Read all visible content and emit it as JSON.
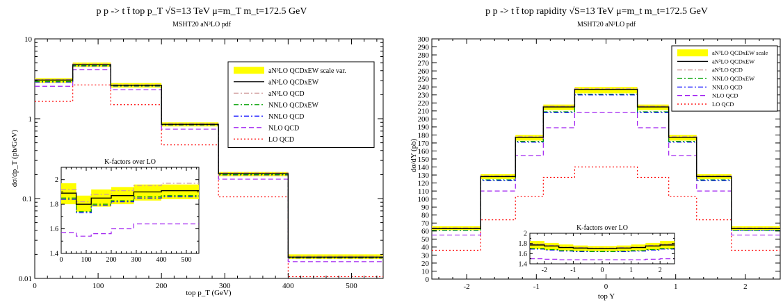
{
  "chart_data": [
    {
      "type": "line",
      "title": "p p -> t t̄    top p_T    √S=13 TeV    μ=m_T    m_t=172.5 GeV",
      "subtitle": "MSHT20 aN³LO pdf",
      "xlabel": "top p_T (GeV)",
      "ylabel": "dσ/dp_T (pb/GeV)",
      "xlim": [
        0,
        550
      ],
      "ylim": [
        0.01,
        10
      ],
      "ylog": true,
      "xticks": [
        0,
        100,
        200,
        300,
        400,
        500
      ],
      "yticks": [
        0.01,
        0.1,
        1,
        10
      ],
      "ytick_labels": [
        "0.01",
        "0.1",
        "1",
        "10"
      ],
      "legend_position": "top-right",
      "bin_edges": [
        0,
        60,
        120,
        200,
        290,
        400,
        550
      ],
      "band": {
        "name": "aN³LO QCDxEW scale var.",
        "color": "#ffff00",
        "lower": [
          2.82,
          4.45,
          2.45,
          0.8,
          0.19,
          0.0175
        ],
        "upper": [
          3.22,
          5.05,
          2.8,
          0.9,
          0.215,
          0.02
        ]
      },
      "series": [
        {
          "name": "aN³LO QCDxEW",
          "color": "#000000",
          "dash": "solid",
          "values": [
            3.05,
            4.75,
            2.62,
            0.85,
            0.205,
            0.0185
          ]
        },
        {
          "name": "aN³LO QCD",
          "color": "#d19c9c",
          "dash": "dashdot",
          "values": [
            3.1,
            4.85,
            2.67,
            0.87,
            0.21,
            0.019
          ]
        },
        {
          "name": "NNLO QCDxEW",
          "color": "#00a000",
          "dash": "dashdot",
          "values": [
            2.93,
            4.62,
            2.58,
            0.84,
            0.2,
            0.0182
          ]
        },
        {
          "name": "NNLO QCD",
          "color": "#0000ff",
          "dash": "dashdot",
          "values": [
            2.88,
            4.58,
            2.56,
            0.835,
            0.198,
            0.018
          ]
        },
        {
          "name": "NLO QCD",
          "color": "#a020f0",
          "dash": "dashed",
          "values": [
            2.55,
            4.1,
            2.3,
            0.74,
            0.175,
            0.0162
          ]
        },
        {
          "name": "LO QCD",
          "color": "#ff0000",
          "dash": "dotted",
          "values": [
            1.65,
            2.65,
            1.5,
            0.47,
            0.105,
            0.0105
          ]
        }
      ],
      "inset": {
        "title": "K-factors over LO",
        "xlim": [
          0,
          550
        ],
        "ylim": [
          1.4,
          2.1
        ],
        "xticks": [
          0,
          100,
          200,
          300,
          400,
          500
        ],
        "yticks": [
          1.4,
          1.6,
          1.8,
          2.0
        ],
        "ytick_labels": [
          "1.4",
          "1.6",
          "1.8",
          "2"
        ],
        "bin_edges": [
          0,
          60,
          120,
          200,
          290,
          400,
          550
        ],
        "band": {
          "lower": [
            1.8,
            1.74,
            1.78,
            1.8,
            1.83,
            1.84
          ],
          "upper": [
            1.97,
            1.87,
            1.92,
            1.94,
            1.96,
            1.96
          ]
        },
        "series": [
          {
            "color": "#000000",
            "dash": "solid",
            "values": [
              1.89,
              1.8,
              1.85,
              1.87,
              1.9,
              1.91
            ]
          },
          {
            "color": "#d19c9c",
            "dash": "dashdot",
            "values": [
              1.92,
              1.82,
              1.88,
              1.91,
              1.95,
              1.97
            ]
          },
          {
            "color": "#00a000",
            "dash": "dashdot",
            "values": [
              1.85,
              1.74,
              1.8,
              1.83,
              1.86,
              1.87
            ]
          },
          {
            "color": "#0000ff",
            "dash": "dashdot",
            "values": [
              1.84,
              1.73,
              1.79,
              1.82,
              1.85,
              1.86
            ]
          },
          {
            "color": "#a020f0",
            "dash": "dashed",
            "values": [
              1.57,
              1.54,
              1.56,
              1.6,
              1.64,
              1.64
            ]
          }
        ]
      }
    },
    {
      "type": "line",
      "title": "p p -> t t̄    top rapidity    √S=13 TeV    μ=m_t    m_t=172.5 GeV",
      "subtitle": "MSHT20 aN³LO pdf",
      "xlabel": "top Y",
      "ylabel": "dσ/dY (pb)",
      "xlim": [
        -2.5,
        2.5
      ],
      "ylim": [
        0,
        300
      ],
      "xticks": [
        -2,
        -1,
        0,
        1,
        2
      ],
      "yticks": [
        0,
        10,
        20,
        30,
        40,
        50,
        60,
        70,
        80,
        90,
        100,
        110,
        120,
        130,
        140,
        150,
        160,
        170,
        180,
        190,
        200,
        210,
        220,
        230,
        240,
        250,
        260,
        270,
        280,
        290,
        300
      ],
      "legend_position": "top-right",
      "bin_edges": [
        -2.5,
        -1.8,
        -1.3,
        -0.9,
        -0.45,
        0.45,
        0.9,
        1.3,
        1.8,
        2.5
      ],
      "band": {
        "name": "aN³LO QCDxEW scale",
        "color": "#ffff00",
        "lower": [
          61,
          125,
          173,
          211,
          232,
          211,
          173,
          125,
          61
        ],
        "upper": [
          66,
          131,
          180,
          218,
          240,
          218,
          180,
          131,
          66
        ]
      },
      "series": [
        {
          "name": "aN³LO QCDxEW",
          "color": "#000000",
          "dash": "solid",
          "values": [
            63,
            128,
            177,
            215,
            237,
            215,
            177,
            128,
            63
          ]
        },
        {
          "name": "aN³LO QCD",
          "color": "#d19c9c",
          "dash": "dashdot",
          "values": [
            64,
            129,
            178,
            216,
            238,
            216,
            178,
            129,
            64
          ]
        },
        {
          "name": "NNLO QCDxEW",
          "color": "#00a000",
          "dash": "dashdot",
          "values": [
            61,
            124,
            172,
            209,
            231,
            209,
            172,
            124,
            61
          ]
        },
        {
          "name": "NNLO QCD",
          "color": "#0000ff",
          "dash": "dashdot",
          "values": [
            61,
            123,
            171,
            208,
            230,
            208,
            171,
            123,
            61
          ]
        },
        {
          "name": "NLO QCD",
          "color": "#a020f0",
          "dash": "dashed",
          "values": [
            55,
            110,
            154,
            189,
            208,
            189,
            154,
            110,
            55
          ]
        },
        {
          "name": "LO QCD",
          "color": "#ff0000",
          "dash": "dotted",
          "values": [
            36,
            74,
            103,
            127,
            140,
            127,
            103,
            74,
            36
          ]
        }
      ],
      "inset": {
        "title": "K-factors over LO",
        "xlim": [
          -2.5,
          2.5
        ],
        "ylim": [
          1.4,
          2.0
        ],
        "xticks": [
          -2,
          -1,
          0,
          1,
          2
        ],
        "yticks": [
          1.4,
          1.6,
          1.8,
          2.0
        ],
        "ytick_labels": [
          "1.4",
          "1.6",
          "1.8",
          "2"
        ],
        "bin_edges": [
          -2.5,
          -2.0,
          -1.5,
          -1.0,
          -0.5,
          0,
          0.5,
          1.0,
          1.5,
          2.0,
          2.5
        ],
        "band": {
          "lower": [
            1.69,
            1.67,
            1.66,
            1.65,
            1.65,
            1.65,
            1.65,
            1.66,
            1.67,
            1.69
          ],
          "upper": [
            1.85,
            1.81,
            1.78,
            1.76,
            1.75,
            1.75,
            1.76,
            1.78,
            1.81,
            1.85
          ]
        },
        "series": [
          {
            "color": "#000000",
            "dash": "solid",
            "values": [
              1.77,
              1.75,
              1.72,
              1.71,
              1.7,
              1.7,
              1.71,
              1.72,
              1.75,
              1.77
            ]
          },
          {
            "color": "#d19c9c",
            "dash": "dashdot",
            "values": [
              1.79,
              1.76,
              1.73,
              1.72,
              1.71,
              1.71,
              1.72,
              1.73,
              1.76,
              1.79
            ]
          },
          {
            "color": "#00a000",
            "dash": "dashdot",
            "values": [
              1.7,
              1.68,
              1.66,
              1.65,
              1.64,
              1.64,
              1.65,
              1.66,
              1.68,
              1.7
            ]
          },
          {
            "color": "#0000ff",
            "dash": "dashdot",
            "values": [
              1.69,
              1.67,
              1.65,
              1.64,
              1.64,
              1.64,
              1.64,
              1.65,
              1.67,
              1.69
            ]
          },
          {
            "color": "#a020f0",
            "dash": "dashed",
            "values": [
              1.5,
              1.49,
              1.48,
              1.48,
              1.48,
              1.48,
              1.48,
              1.48,
              1.49,
              1.5
            ]
          }
        ]
      }
    }
  ]
}
